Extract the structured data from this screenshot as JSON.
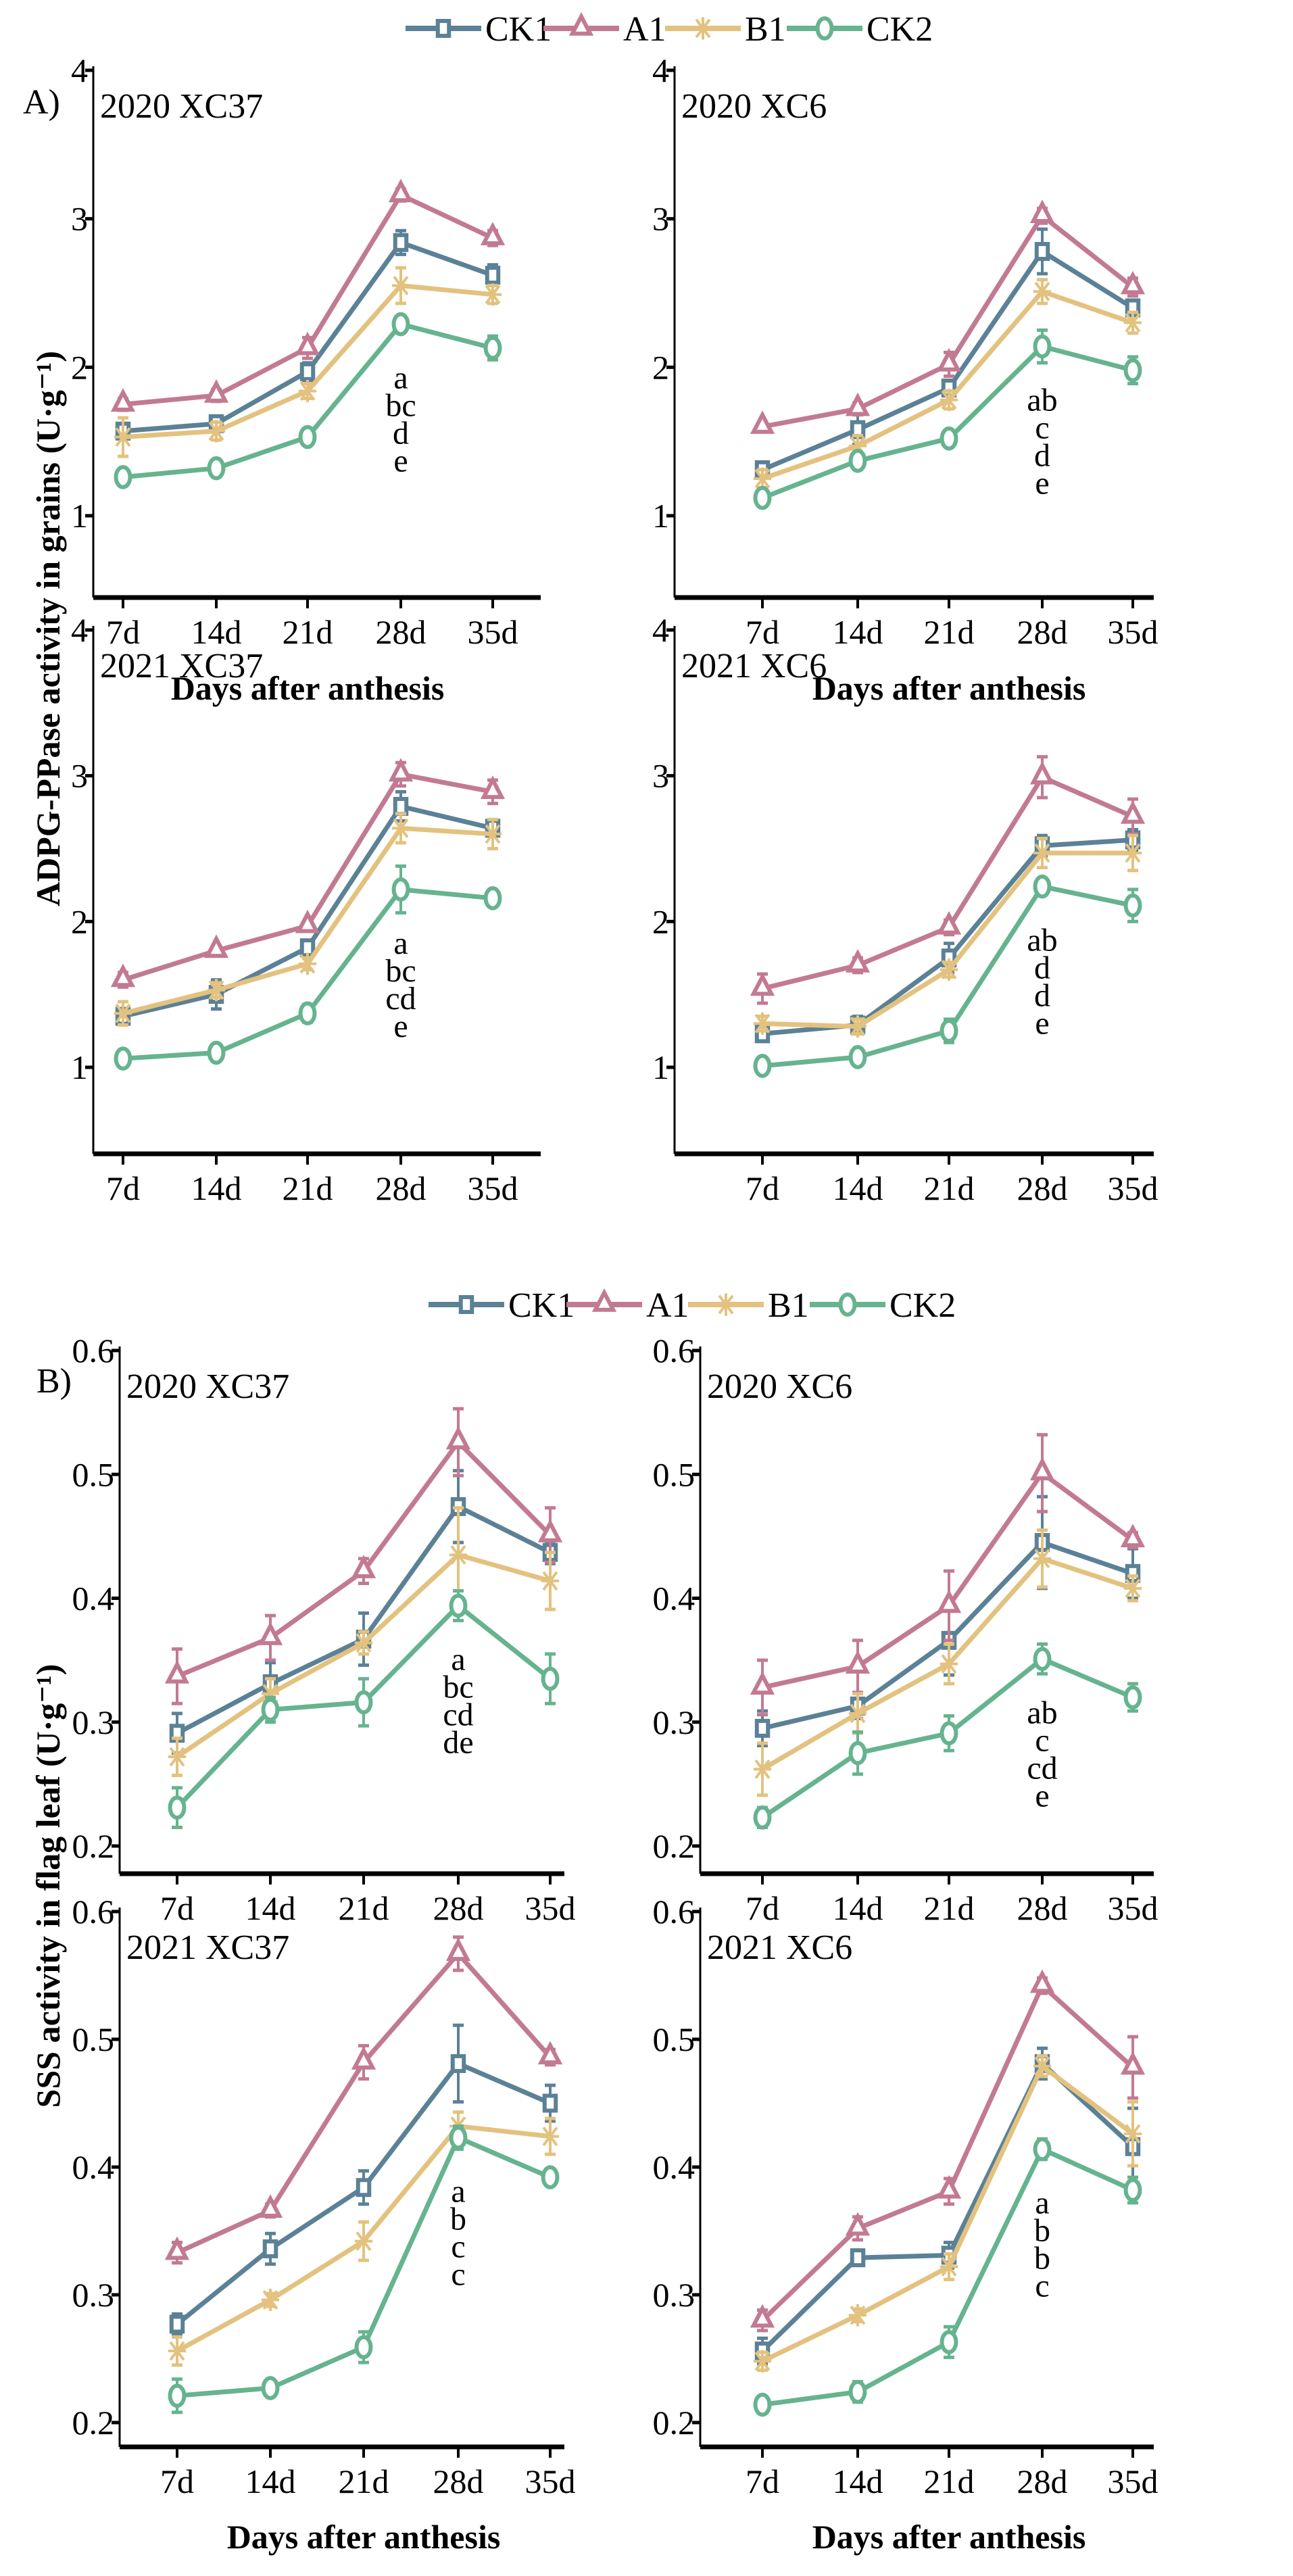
{
  "legend": [
    {
      "name": "CK1",
      "marker": "square",
      "color": "#5b8196"
    },
    {
      "name": "A1",
      "marker": "triangle",
      "color": "#c27a92"
    },
    {
      "name": "B1",
      "marker": "asterisk",
      "color": "#e3c27f"
    },
    {
      "name": "CK2",
      "marker": "circle",
      "color": "#66b38f"
    }
  ],
  "sections": [
    {
      "label": "A)",
      "ylabel": "ADPG-PPase activity in grains (U·g⁻¹)",
      "xlabel": "Days after anthesis"
    },
    {
      "label": "B)",
      "ylabel": "SSS activity in flag leaf (U·g⁻¹)",
      "xlabel": "Days after anthesis"
    }
  ],
  "chart_data": [
    {
      "type": "line",
      "section": 0,
      "title": "2020  XC37",
      "categories": [
        "7d",
        "14d",
        "21d",
        "28d",
        "35d"
      ],
      "yticks": [
        "1",
        "2",
        "3",
        "4"
      ],
      "ylim": [
        0.45,
        4
      ],
      "series": [
        {
          "name": "CK1",
          "values": [
            1.57,
            1.62,
            1.97,
            2.84,
            2.62
          ],
          "err": [
            0.05,
            0.04,
            0.06,
            0.08,
            0.07
          ]
        },
        {
          "name": "A1",
          "values": [
            1.75,
            1.81,
            2.13,
            3.16,
            2.87
          ],
          "err": [
            0.04,
            0.04,
            0.07,
            0.04,
            0.05
          ]
        },
        {
          "name": "B1",
          "values": [
            1.53,
            1.57,
            1.84,
            2.55,
            2.49
          ],
          "err": [
            0.13,
            0.06,
            0.05,
            0.12,
            0.06
          ]
        },
        {
          "name": "CK2",
          "values": [
            1.26,
            1.32,
            1.53,
            2.29,
            2.13
          ],
          "err": [
            0.03,
            0.03,
            0.03,
            0.05,
            0.08
          ]
        }
      ],
      "letters": [
        "a",
        "bc",
        "d",
        "e"
      ]
    },
    {
      "type": "line",
      "section": 0,
      "title": "2020  XC6",
      "categories": [
        "7d",
        "14d",
        "21d",
        "28d",
        "35d"
      ],
      "yticks": [
        "1",
        "2",
        "3",
        "4"
      ],
      "ylim": [
        0.45,
        4
      ],
      "series": [
        {
          "name": "CK1",
          "values": [
            1.31,
            1.58,
            1.86,
            2.78,
            2.4
          ],
          "err": [
            0.05,
            0.1,
            0.05,
            0.15,
            0.05
          ]
        },
        {
          "name": "A1",
          "values": [
            1.6,
            1.72,
            2.02,
            3.02,
            2.54
          ],
          "err": [
            0.03,
            0.04,
            0.08,
            0.05,
            0.06
          ]
        },
        {
          "name": "B1",
          "values": [
            1.25,
            1.47,
            1.78,
            2.51,
            2.3
          ],
          "err": [
            0.06,
            0.07,
            0.06,
            0.08,
            0.07
          ]
        },
        {
          "name": "CK2",
          "values": [
            1.12,
            1.37,
            1.52,
            2.14,
            1.98
          ],
          "err": [
            0.05,
            0.04,
            0.04,
            0.11,
            0.09
          ]
        }
      ],
      "letters": [
        "ab",
        "c",
        "d",
        "e"
      ]
    },
    {
      "type": "line",
      "section": 0,
      "title": "2021  XC37",
      "categories": [
        "7d",
        "14d",
        "21d",
        "28d",
        "35d"
      ],
      "yticks": [
        "1",
        "2",
        "3",
        "4"
      ],
      "ylim": [
        0.45,
        4
      ],
      "series": [
        {
          "name": "CK1",
          "values": [
            1.35,
            1.5,
            1.82,
            2.79,
            2.64
          ],
          "err": [
            0.05,
            0.1,
            0.05,
            0.1,
            0.05
          ]
        },
        {
          "name": "A1",
          "values": [
            1.6,
            1.8,
            1.97,
            3.01,
            2.89
          ],
          "err": [
            0.05,
            0.03,
            0.03,
            0.08,
            0.08
          ]
        },
        {
          "name": "B1",
          "values": [
            1.37,
            1.53,
            1.71,
            2.64,
            2.6
          ],
          "err": [
            0.08,
            0.05,
            0.04,
            0.1,
            0.1
          ]
        },
        {
          "name": "CK2",
          "values": [
            1.06,
            1.1,
            1.37,
            2.22,
            2.16
          ],
          "err": [
            0.03,
            0.03,
            0.06,
            0.16,
            0.03
          ]
        }
      ],
      "letters": [
        "a",
        "bc",
        "cd",
        "e"
      ]
    },
    {
      "type": "line",
      "section": 0,
      "title": "2021  XC6",
      "categories": [
        "7d",
        "14d",
        "21d",
        "28d",
        "35d"
      ],
      "yticks": [
        "1",
        "2",
        "3",
        "4"
      ],
      "ylim": [
        0.45,
        4
      ],
      "series": [
        {
          "name": "CK1",
          "values": [
            1.23,
            1.29,
            1.75,
            2.52,
            2.56
          ],
          "err": [
            0.03,
            0.06,
            0.1,
            0.07,
            0.07
          ]
        },
        {
          "name": "A1",
          "values": [
            1.54,
            1.7,
            1.96,
            2.99,
            2.72
          ],
          "err": [
            0.1,
            0.05,
            0.05,
            0.14,
            0.12
          ]
        },
        {
          "name": "B1",
          "values": [
            1.3,
            1.28,
            1.67,
            2.47,
            2.47
          ],
          "err": [
            0.05,
            0.05,
            0.05,
            0.1,
            0.12
          ]
        },
        {
          "name": "CK2",
          "values": [
            1.01,
            1.07,
            1.25,
            2.24,
            2.11
          ],
          "err": [
            0.03,
            0.04,
            0.08,
            0.04,
            0.11
          ]
        }
      ],
      "letters": [
        "ab",
        "d",
        "d",
        "e"
      ]
    },
    {
      "type": "line",
      "section": 1,
      "title": "2020  XC37",
      "categories": [
        "7d",
        "14d",
        "21d",
        "28d",
        "35d"
      ],
      "yticks": [
        "0.2",
        "0.3",
        "0.4",
        "0.5",
        "0.6"
      ],
      "ylim": [
        0.177,
        0.6
      ],
      "series": [
        {
          "name": "CK1",
          "values": [
            0.291,
            0.331,
            0.367,
            0.474,
            0.437
          ],
          "err": [
            0.016,
            0.017,
            0.021,
            0.029,
            0.009
          ]
        },
        {
          "name": "A1",
          "values": [
            0.337,
            0.368,
            0.422,
            0.526,
            0.451
          ],
          "err": [
            0.022,
            0.018,
            0.01,
            0.027,
            0.022
          ]
        },
        {
          "name": "B1",
          "values": [
            0.272,
            0.323,
            0.364,
            0.435,
            0.414
          ],
          "err": [
            0.015,
            0.012,
            0.009,
            0.038,
            0.023
          ]
        },
        {
          "name": "CK2",
          "values": [
            0.231,
            0.31,
            0.316,
            0.394,
            0.335
          ],
          "err": [
            0.016,
            0.01,
            0.019,
            0.012,
            0.02
          ]
        }
      ],
      "letters": [
        "a",
        "bc",
        "cd",
        "de"
      ]
    },
    {
      "type": "line",
      "section": 1,
      "title": "2020  XC6",
      "categories": [
        "7d",
        "14d",
        "21d",
        "28d",
        "35d"
      ],
      "yticks": [
        "0.2",
        "0.3",
        "0.4",
        "0.5",
        "0.6"
      ],
      "ylim": [
        0.177,
        0.6
      ],
      "series": [
        {
          "name": "CK1",
          "values": [
            0.295,
            0.313,
            0.366,
            0.445,
            0.42
          ],
          "err": [
            0.014,
            0.01,
            0.028,
            0.037,
            0.02
          ]
        },
        {
          "name": "A1",
          "values": [
            0.328,
            0.345,
            0.394,
            0.501,
            0.447
          ],
          "err": [
            0.022,
            0.021,
            0.028,
            0.031,
            0.006
          ]
        },
        {
          "name": "B1",
          "values": [
            0.262,
            0.307,
            0.347,
            0.432,
            0.408
          ],
          "err": [
            0.021,
            0.016,
            0.016,
            0.023,
            0.01
          ]
        },
        {
          "name": "CK2",
          "values": [
            0.223,
            0.275,
            0.291,
            0.351,
            0.32
          ],
          "err": [
            0.008,
            0.017,
            0.014,
            0.012,
            0.011
          ]
        }
      ],
      "letters": [
        "ab",
        "c",
        "cd",
        "e"
      ]
    },
    {
      "type": "line",
      "section": 1,
      "title": "2021  XC37",
      "categories": [
        "7d",
        "14d",
        "21d",
        "28d",
        "35d"
      ],
      "yticks": [
        "0.2",
        "0.3",
        "0.4",
        "0.5",
        "0.6"
      ],
      "ylim": [
        0.181,
        0.6
      ],
      "series": [
        {
          "name": "CK1",
          "values": [
            0.277,
            0.336,
            0.384,
            0.481,
            0.45
          ],
          "err": [
            0.008,
            0.012,
            0.013,
            0.03,
            0.014
          ]
        },
        {
          "name": "A1",
          "values": [
            0.333,
            0.366,
            0.482,
            0.567,
            0.486
          ],
          "err": [
            0.008,
            0.005,
            0.013,
            0.013,
            0.006
          ]
        },
        {
          "name": "B1",
          "values": [
            0.256,
            0.296,
            0.342,
            0.432,
            0.424
          ],
          "err": [
            0.011,
            0.005,
            0.015,
            0.011,
            0.014
          ]
        },
        {
          "name": "CK2",
          "values": [
            0.221,
            0.227,
            0.259,
            0.423,
            0.392
          ],
          "err": [
            0.013,
            0.004,
            0.012,
            0.009,
            0.006
          ]
        }
      ],
      "letters": [
        "a",
        "b",
        "c",
        "c"
      ]
    },
    {
      "type": "line",
      "section": 1,
      "title": "2021  XC6",
      "categories": [
        "7d",
        "14d",
        "21d",
        "28d",
        "35d"
      ],
      "yticks": [
        "0.2",
        "0.3",
        "0.4",
        "0.5",
        "0.6"
      ],
      "ylim": [
        0.181,
        0.6
      ],
      "series": [
        {
          "name": "CK1",
          "values": [
            0.256,
            0.329,
            0.331,
            0.481,
            0.416
          ],
          "err": [
            0.01,
            0.006,
            0.01,
            0.012,
            0.03
          ]
        },
        {
          "name": "A1",
          "values": [
            0.28,
            0.352,
            0.381,
            0.542,
            0.478
          ],
          "err": [
            0.008,
            0.009,
            0.01,
            0.006,
            0.024
          ]
        },
        {
          "name": "B1",
          "values": [
            0.248,
            0.284,
            0.322,
            0.479,
            0.426
          ],
          "err": [
            0.007,
            0.005,
            0.01,
            0.008,
            0.025
          ]
        },
        {
          "name": "CK2",
          "values": [
            0.214,
            0.224,
            0.263,
            0.414,
            0.382
          ],
          "err": [
            0.004,
            0.008,
            0.012,
            0.008,
            0.01
          ]
        }
      ],
      "letters": [
        "a",
        "b",
        "b",
        "c"
      ]
    }
  ]
}
